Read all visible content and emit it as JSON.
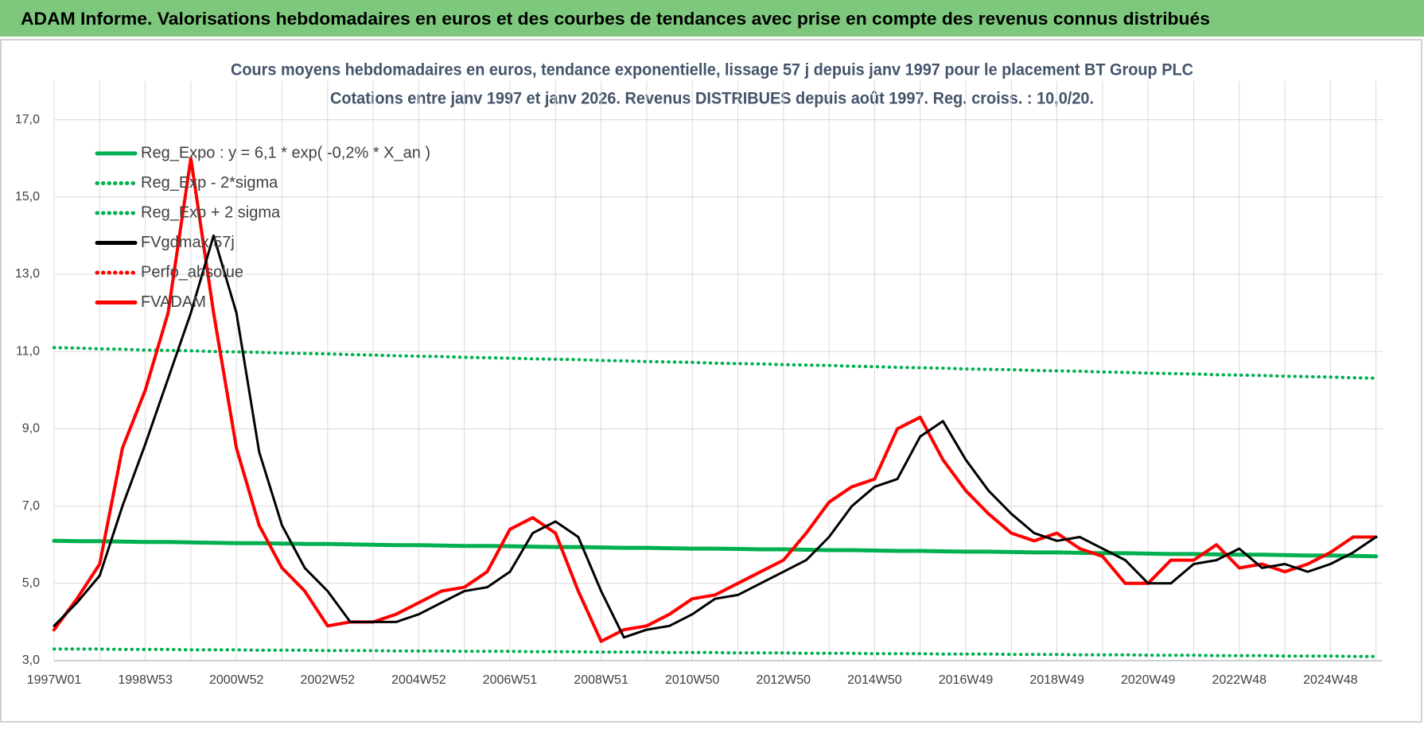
{
  "header": {
    "title": "ADAM Informe. Valorisations hebdomadaires en euros et des courbes de tendances avec prise en compte des revenus connus distribués"
  },
  "chart_data": {
    "type": "line",
    "title": "Cours moyens hebdomadaires en euros, tendance exponentielle, lissage 57 j depuis janv 1997  pour le placement BT Group PLC",
    "subtitle": "Cotations entre janv 1997 et janv 2026. Revenus DISTRIBUES depuis août 1997. Reg. croiss. : 10,0/20.",
    "categories": [
      "1997W01",
      null,
      null,
      null,
      "1998W53",
      null,
      null,
      null,
      "2000W52",
      null,
      null,
      null,
      "2002W52",
      null,
      null,
      null,
      "2004W52",
      null,
      null,
      null,
      "2006W51",
      null,
      null,
      null,
      "2008W51",
      null,
      null,
      null,
      "2010W50",
      null,
      null,
      null,
      "2012W50",
      null,
      null,
      null,
      "2014W50",
      null,
      null,
      null,
      "2016W49",
      null,
      null,
      null,
      "2018W49",
      null,
      null,
      null,
      "2020W49",
      null,
      null,
      null,
      "2022W48",
      null,
      null,
      null,
      "2024W48",
      null,
      null
    ],
    "ylim": [
      3,
      18
    ],
    "yticks": [
      {
        "value": 3,
        "label": "3,0"
      },
      {
        "value": 5,
        "label": "5,0"
      },
      {
        "value": 7,
        "label": "7,0"
      },
      {
        "value": 9,
        "label": "9,0"
      },
      {
        "value": 11,
        "label": "11,0"
      },
      {
        "value": 13,
        "label": "13,0"
      },
      {
        "value": 15,
        "label": "15,0"
      },
      {
        "value": 17,
        "label": "17,0"
      }
    ],
    "grid": true,
    "legend": "top-left",
    "series": [
      {
        "name": "Reg_Expo : y = 6,1 * exp( -0,2% *  X_an )",
        "color": "#00b050",
        "style": "solid",
        "values": [
          6.1,
          6.09,
          6.09,
          6.08,
          6.07,
          6.07,
          6.06,
          6.05,
          6.04,
          6.04,
          6.03,
          6.02,
          6.02,
          6.01,
          6,
          5.99,
          5.99,
          5.98,
          5.97,
          5.97,
          5.96,
          5.95,
          5.94,
          5.94,
          5.93,
          5.92,
          5.92,
          5.91,
          5.9,
          5.9,
          5.89,
          5.88,
          5.88,
          5.87,
          5.86,
          5.86,
          5.85,
          5.84,
          5.84,
          5.83,
          5.82,
          5.82,
          5.81,
          5.8,
          5.8,
          5.79,
          5.78,
          5.78,
          5.77,
          5.76,
          5.76,
          5.75,
          5.74,
          5.74,
          5.73,
          5.72,
          5.72,
          5.71,
          5.7
        ]
      },
      {
        "name": "Reg_Exp - 2*sigma",
        "color": "#00b050",
        "style": "dotted",
        "values": [
          3.3,
          3.3,
          3.3,
          3.29,
          3.29,
          3.29,
          3.28,
          3.28,
          3.28,
          3.27,
          3.27,
          3.27,
          3.26,
          3.26,
          3.26,
          3.25,
          3.25,
          3.25,
          3.24,
          3.24,
          3.24,
          3.23,
          3.23,
          3.23,
          3.22,
          3.22,
          3.22,
          3.21,
          3.21,
          3.21,
          3.2,
          3.2,
          3.2,
          3.19,
          3.19,
          3.19,
          3.18,
          3.18,
          3.18,
          3.17,
          3.17,
          3.17,
          3.16,
          3.16,
          3.16,
          3.15,
          3.15,
          3.15,
          3.14,
          3.14,
          3.14,
          3.13,
          3.13,
          3.13,
          3.12,
          3.12,
          3.12,
          3.11,
          3.11
        ]
      },
      {
        "name": "Reg_Exp + 2 sigma",
        "color": "#00b050",
        "style": "dotted",
        "values": [
          11.1,
          11.09,
          11.07,
          11.06,
          11.04,
          11.03,
          11.02,
          11,
          10.99,
          10.98,
          10.96,
          10.95,
          10.94,
          10.92,
          10.91,
          10.89,
          10.88,
          10.87,
          10.85,
          10.84,
          10.83,
          10.81,
          10.8,
          10.79,
          10.77,
          10.76,
          10.74,
          10.73,
          10.72,
          10.7,
          10.69,
          10.68,
          10.66,
          10.65,
          10.64,
          10.62,
          10.61,
          10.59,
          10.58,
          10.57,
          10.55,
          10.54,
          10.53,
          10.51,
          10.5,
          10.49,
          10.47,
          10.46,
          10.44,
          10.43,
          10.42,
          10.4,
          10.39,
          10.38,
          10.36,
          10.35,
          10.34,
          10.32,
          10.31
        ]
      },
      {
        "name": "FVgdmax 57j",
        "color": "#000000",
        "style": "solid",
        "values": [
          3.9,
          4.5,
          5.2,
          7.0,
          8.6,
          10.3,
          12.0,
          14.0,
          12.0,
          8.4,
          6.5,
          5.4,
          4.8,
          4.0,
          4.0,
          4.0,
          4.2,
          4.5,
          4.8,
          4.9,
          5.3,
          6.3,
          6.6,
          6.2,
          4.8,
          3.6,
          3.8,
          3.9,
          4.2,
          4.6,
          4.7,
          5.0,
          5.3,
          5.6,
          6.2,
          7.0,
          7.5,
          7.7,
          8.8,
          9.2,
          8.2,
          7.4,
          6.8,
          6.3,
          6.1,
          6.2,
          5.9,
          5.6,
          5.0,
          5.0,
          5.5,
          5.6,
          5.9,
          5.4,
          5.5,
          5.3,
          5.5,
          5.8,
          6.2
        ]
      },
      {
        "name": "Perfo_absolue",
        "color": "#ff0000",
        "style": "dotted",
        "values": [
          3.8,
          4.6,
          5.5,
          8.5,
          10.0,
          12.0,
          16.0,
          12.0,
          8.5,
          6.5,
          5.4,
          4.8,
          3.9,
          4.0,
          4.0,
          4.2,
          4.5,
          4.8,
          4.9,
          5.3,
          6.4,
          6.7,
          6.3,
          4.8,
          3.5,
          3.8,
          3.9,
          4.2,
          4.6,
          4.7,
          5.0,
          5.3,
          5.6,
          6.3,
          7.1,
          7.5,
          7.7,
          9.0,
          9.3,
          8.2,
          7.4,
          6.8,
          6.3,
          6.1,
          6.3,
          5.9,
          5.7,
          5.0,
          5.0,
          5.6,
          5.6,
          6.0,
          5.4,
          5.5,
          5.3,
          5.5,
          5.8,
          6.2,
          6.2
        ]
      },
      {
        "name": "FVADAM",
        "color": "#ff0000",
        "style": "solid",
        "values": [
          3.8,
          4.6,
          5.5,
          8.5,
          10.0,
          12.0,
          16.0,
          12.0,
          8.5,
          6.5,
          5.4,
          4.8,
          3.9,
          4.0,
          4.0,
          4.2,
          4.5,
          4.8,
          4.9,
          5.3,
          6.4,
          6.7,
          6.3,
          4.8,
          3.5,
          3.8,
          3.9,
          4.2,
          4.6,
          4.7,
          5.0,
          5.3,
          5.6,
          6.3,
          7.1,
          7.5,
          7.7,
          9.0,
          9.3,
          8.2,
          7.4,
          6.8,
          6.3,
          6.1,
          6.3,
          5.9,
          5.7,
          5.0,
          5.0,
          5.6,
          5.6,
          6.0,
          5.4,
          5.5,
          5.3,
          5.5,
          5.8,
          6.2,
          6.2
        ]
      }
    ]
  }
}
